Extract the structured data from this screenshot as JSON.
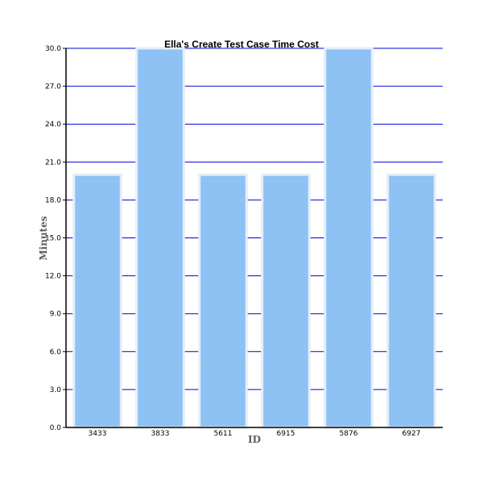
{
  "chart_data": {
    "type": "bar",
    "title": "Ella's Create Test Case Time Cost",
    "xlabel": "ID",
    "ylabel": "Minutes",
    "categories": [
      "3433",
      "3833",
      "5611",
      "6915",
      "5876",
      "6927"
    ],
    "values": [
      20,
      30,
      20,
      20,
      30,
      20
    ],
    "ylim": [
      0,
      30
    ],
    "yticks": [
      "0.0",
      "3.0",
      "6.0",
      "9.0",
      "12.0",
      "15.0",
      "18.0",
      "21.0",
      "24.0",
      "27.0",
      "30.0"
    ],
    "grid": true,
    "legend": "none",
    "colors": {
      "bar_fill": "#8ec1f4",
      "bar_stroke": "#e4eef8",
      "grid": "#0000dd",
      "axis": "#000000"
    }
  }
}
